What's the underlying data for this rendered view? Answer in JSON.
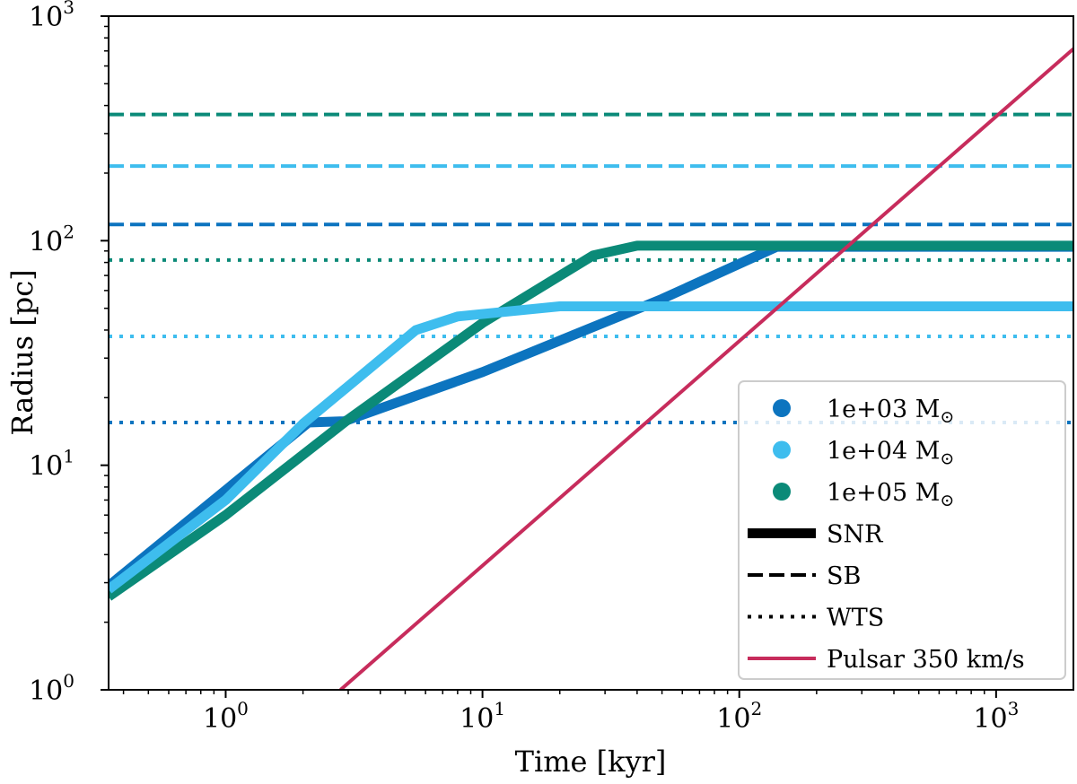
{
  "chart_data": {
    "type": "line",
    "xscale": "log",
    "yscale": "log",
    "xlabel": "Time [kyr]",
    "ylabel": "Radius [pc]",
    "xlim": [
      0.35,
      2000
    ],
    "ylim": [
      1,
      1000
    ],
    "xticks": [
      {
        "value": 1,
        "base": "10",
        "exp": "0"
      },
      {
        "value": 10,
        "base": "10",
        "exp": "1"
      },
      {
        "value": 100,
        "base": "10",
        "exp": "2"
      },
      {
        "value": 1000,
        "base": "10",
        "exp": "3"
      }
    ],
    "yticks": [
      {
        "value": 1,
        "base": "10",
        "exp": "0"
      },
      {
        "value": 10,
        "base": "10",
        "exp": "1"
      },
      {
        "value": 100,
        "base": "10",
        "exp": "2"
      },
      {
        "value": 1000,
        "base": "10",
        "exp": "3"
      }
    ],
    "colors": {
      "m1e3": "#0c74bf",
      "m1e4": "#3ebdee",
      "m1e5": "#0b8a78",
      "pulsar": "#c72c5c"
    },
    "series": [
      {
        "name": "SB 1e+03",
        "style": "dashed",
        "color": "#0c74bf",
        "x": [
          0.35,
          2000
        ],
        "y": [
          118,
          118
        ]
      },
      {
        "name": "SB 1e+04",
        "style": "dashed",
        "color": "#3ebdee",
        "x": [
          0.35,
          2000
        ],
        "y": [
          215,
          215
        ]
      },
      {
        "name": "SB 1e+05",
        "style": "dashed",
        "color": "#0b8a78",
        "x": [
          0.35,
          2000
        ],
        "y": [
          365,
          365
        ]
      },
      {
        "name": "WTS 1e+03",
        "style": "dotted",
        "color": "#0c74bf",
        "x": [
          0.35,
          2000
        ],
        "y": [
          15.5,
          15.5
        ]
      },
      {
        "name": "WTS 1e+04",
        "style": "dotted",
        "color": "#3ebdee",
        "x": [
          0.35,
          2000
        ],
        "y": [
          37.5,
          37.5
        ]
      },
      {
        "name": "WTS 1e+05",
        "style": "dotted",
        "color": "#0b8a78",
        "x": [
          0.35,
          2000
        ],
        "y": [
          82,
          82
        ]
      },
      {
        "name": "SNR 1e+03",
        "style": "solid",
        "color": "#0c74bf",
        "x": [
          0.35,
          2.1,
          2.9,
          10,
          50,
          140,
          2000
        ],
        "y": [
          2.9,
          15.5,
          15.7,
          26,
          55,
          94,
          94
        ]
      },
      {
        "name": "SNR 1e+05",
        "style": "solid",
        "color": "#0b8a78",
        "x": [
          0.35,
          1,
          3,
          10,
          27,
          40,
          2000
        ],
        "y": [
          2.6,
          6,
          16,
          43,
          86,
          95,
          95
        ]
      },
      {
        "name": "SNR 1e+04",
        "style": "solid",
        "color": "#3ebdee",
        "x": [
          0.35,
          1,
          2,
          5.5,
          8,
          20,
          2000
        ],
        "y": [
          2.8,
          7,
          15.3,
          40,
          46,
          51,
          51
        ]
      },
      {
        "name": "Pulsar 350 km/s",
        "style": "solid-thin",
        "color": "#c72c5c",
        "x": [
          2.8,
          2000
        ],
        "y": [
          1,
          715
        ]
      }
    ],
    "legend": {
      "position": "lower-right",
      "entries": [
        {
          "label": "1e+03 M",
          "sub": "⊙",
          "marker": "dot",
          "color": "#0c74bf"
        },
        {
          "label": "1e+04 M",
          "sub": "⊙",
          "marker": "dot",
          "color": "#3ebdee"
        },
        {
          "label": "1e+05 M",
          "sub": "⊙",
          "marker": "dot",
          "color": "#0b8a78"
        },
        {
          "label": "SNR",
          "marker": "thick",
          "color": "#000000"
        },
        {
          "label": "SB",
          "marker": "dashed",
          "color": "#000000"
        },
        {
          "label": "WTS",
          "marker": "dotted",
          "color": "#000000"
        },
        {
          "label": "Pulsar 350 km/s",
          "marker": "thin",
          "color": "#c72c5c"
        }
      ]
    }
  }
}
